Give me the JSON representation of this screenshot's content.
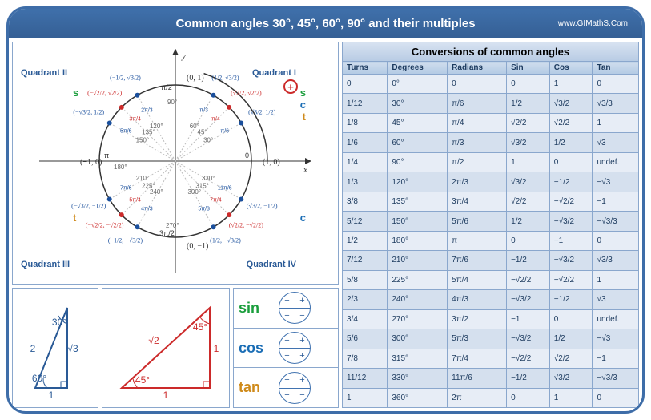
{
  "header": {
    "title": "Common angles 30°, 45°, 60°, 90° and their multiples",
    "site": "www.GIMathS.Com"
  },
  "circle": {
    "quadrants": [
      "Quadrant II",
      "Quadrant I",
      "Quadrant III",
      "Quadrant IV"
    ],
    "axis_coords": [
      "(0, 1)",
      "(1, 0)",
      "(0, −1)",
      "(−1, 0)"
    ],
    "y_label": "y",
    "x_label": "x",
    "pi2": "π/2",
    "pi": "π",
    "pi32": "3π/2",
    "zero": "0",
    "angles_deg_q1": [
      "30°",
      "45°",
      "60°",
      "90°"
    ],
    "angles_deg_q2": [
      "120°",
      "135°",
      "150°",
      "180°"
    ],
    "angles_deg_q3": [
      "210°",
      "225°",
      "240°",
      "270°"
    ],
    "angles_deg_q4": [
      "300°",
      "315°",
      "330°"
    ],
    "coord_labels_q1": [
      "(√3/2, 1/2)",
      "(√2/2, √2/2)",
      "(1/2, √3/2)"
    ],
    "coord_labels_q2": [
      "(−1/2, √3/2)",
      "(−√2/2, √2/2)",
      "(−√3/2, 1/2)"
    ],
    "coord_labels_q3": [
      "(−√3/2, −1/2)",
      "(−√2/2, −√2/2)",
      "(−1/2, −√3/2)"
    ],
    "coord_labels_q4": [
      "(1/2, −√3/2)",
      "(√2/2, −√2/2)",
      "(√3/2, −1/2)"
    ],
    "rad_labels": [
      "π/6",
      "π/4",
      "π/3",
      "2π/3",
      "3π/4",
      "5π/6",
      "7π/6",
      "5π/4",
      "4π/3",
      "5π/3",
      "7π/4",
      "11π/6"
    ],
    "stc_s": "s",
    "stc_c": "c",
    "stc_t": "t",
    "plus": "+",
    "colors": {
      "point_red": "#cc2a2a",
      "point_blue": "#1a4f9c",
      "ring": "#333",
      "ray": "#bdbdbd"
    }
  },
  "tri30": {
    "angle_top": "30°",
    "angle_bot": "60°",
    "hyp": "2",
    "opp": "√3",
    "adj": "1",
    "color": "#2a5a96"
  },
  "tri45": {
    "angle_top": "45°",
    "angle_bot": "45°",
    "hyp": "√2",
    "side": "1",
    "color_line": "#cc2a2a",
    "color_text": "#cc2a2a"
  },
  "signs": {
    "rows": [
      {
        "label": "sin",
        "cls": "sin-label",
        "q1": "+",
        "q2": "+",
        "q3": "−",
        "q4": "−"
      },
      {
        "label": "cos",
        "cls": "cos-label",
        "q1": "+",
        "q2": "−",
        "q3": "−",
        "q4": "+"
      },
      {
        "label": "tan",
        "cls": "tan-label",
        "q1": "+",
        "q2": "−",
        "q3": "+",
        "q4": "−"
      }
    ]
  },
  "table": {
    "title": "Conversions  of common  angles",
    "columns": [
      "Turns",
      "Degrees",
      "Radians",
      "Sin",
      "Cos",
      "Tan"
    ],
    "rows": [
      [
        "0",
        "0°",
        "0",
        "0",
        "1",
        "0"
      ],
      [
        "1/12",
        "30°",
        "π/6",
        "1/2",
        "√3/2",
        "√3/3"
      ],
      [
        "1/8",
        "45°",
        "π/4",
        "√2/2",
        "√2/2",
        "1"
      ],
      [
        "1/6",
        "60°",
        "π/3",
        "√3/2",
        "1/2",
        "√3"
      ],
      [
        "1/4",
        "90°",
        "π/2",
        "1",
        "0",
        "undef."
      ],
      [
        "1/3",
        "120°",
        "2π/3",
        "√3/2",
        "−1/2",
        "−√3"
      ],
      [
        "3/8",
        "135°",
        "3π/4",
        "√2/2",
        "−√2/2",
        "−1"
      ],
      [
        "5/12",
        "150°",
        "5π/6",
        "1/2",
        "−√3/2",
        "−√3/3"
      ],
      [
        "1/2",
        "180°",
        "π",
        "0",
        "−1",
        "0"
      ],
      [
        "7/12",
        "210°",
        "7π/6",
        "−1/2",
        "−√3/2",
        "√3/3"
      ],
      [
        "5/8",
        "225°",
        "5π/4",
        "−√2/2",
        "−√2/2",
        "1"
      ],
      [
        "2/3",
        "240°",
        "4π/3",
        "−√3/2",
        "−1/2",
        "√3"
      ],
      [
        "3/4",
        "270°",
        "3π/2",
        "−1",
        "0",
        "undef."
      ],
      [
        "5/6",
        "300°",
        "5π/3",
        "−√3/2",
        "1/2",
        "−√3"
      ],
      [
        "7/8",
        "315°",
        "7π/4",
        "−√2/2",
        "√2/2",
        "−1"
      ],
      [
        "11/12",
        "330°",
        "11π/6",
        "−1/2",
        "√3/2",
        "−√3/3"
      ],
      [
        "1",
        "360°",
        "2π",
        "0",
        "1",
        "0"
      ]
    ]
  }
}
